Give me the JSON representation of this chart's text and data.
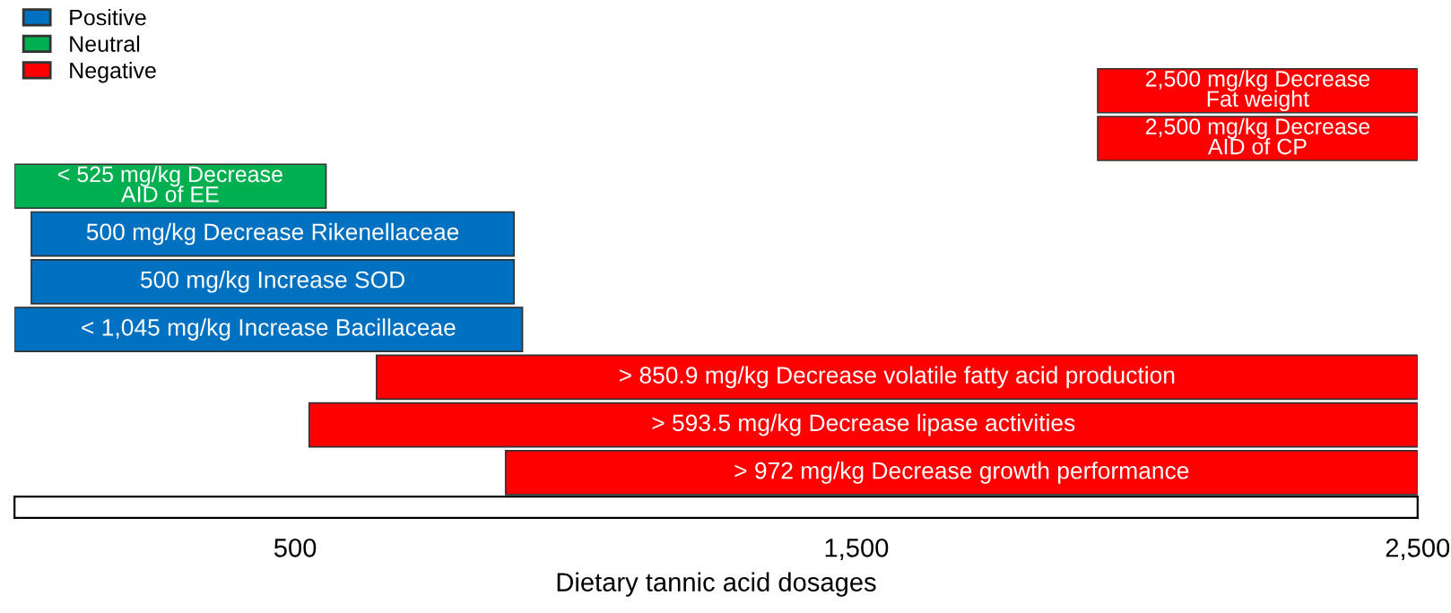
{
  "chart_data": {
    "type": "bar",
    "orientation": "horizontal",
    "xlabel": "Dietary tannic acid dosages",
    "categories": [
      "2,500 mg/kg Decrease\nFat weight",
      "2,500 mg/kg Decrease\nAID of CP",
      "< 525 mg/kg Decrease\nAID of EE",
      "500 mg/kg Decrease Rikenellaceae",
      "500 mg/kg Increase SOD",
      "< 1,045 mg/kg Increase Bacillaceae",
      "> 850.9 mg/kg Decrease volatile fatty acid production",
      "> 593.5 mg/kg Decrease lipase activities",
      "> 972 mg/kg Decrease growth performance"
    ],
    "series": [
      {
        "name": "Positive",
        "color": "#0070c0",
        "base": [
          null,
          null,
          null,
          30,
          30,
          0,
          null,
          null,
          null
        ],
        "values": [
          null,
          null,
          null,
          860,
          860,
          905,
          null,
          null,
          null
        ]
      },
      {
        "name": "Neutral",
        "color": "#00b050",
        "base": [
          null,
          null,
          0,
          null,
          null,
          null,
          null,
          null,
          null
        ],
        "values": [
          null,
          null,
          555,
          null,
          null,
          null,
          null,
          null,
          null
        ]
      },
      {
        "name": "Negative",
        "color": "#ff0000",
        "base": [
          1930,
          1930,
          null,
          null,
          null,
          null,
          645,
          525,
          875
        ],
        "values": [
          570,
          570,
          null,
          null,
          null,
          null,
          1855,
          1975,
          1625
        ]
      }
    ],
    "xlim": [
      0,
      2500
    ],
    "xticks": [
      {
        "value": 500,
        "label": "500"
      },
      {
        "value": 1500,
        "label": "1,500"
      },
      {
        "value": 2500,
        "label": "2,500"
      }
    ],
    "legend": "top left",
    "grid": false
  }
}
